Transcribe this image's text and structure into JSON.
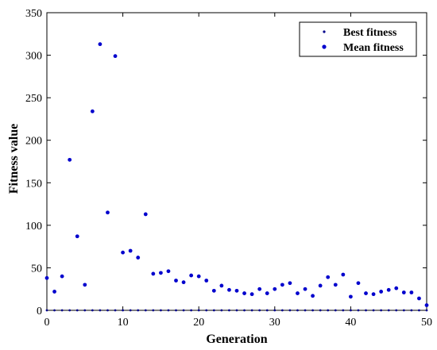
{
  "chart_data": {
    "type": "scatter",
    "xlabel": "Generation",
    "ylabel": "Fitness value",
    "xlim": [
      0,
      50
    ],
    "ylim": [
      0,
      350
    ],
    "xticks": [
      0,
      10,
      20,
      30,
      40,
      50
    ],
    "yticks": [
      0,
      50,
      100,
      150,
      200,
      250,
      300,
      350
    ],
    "xtick_labels": [
      "0",
      "10",
      "20",
      "30",
      "40",
      "50"
    ],
    "ytick_labels": [
      "0",
      "50",
      "100",
      "150",
      "200",
      "250",
      "300",
      "350"
    ],
    "grid": false,
    "legend_position": "top-right",
    "series": [
      {
        "name": "Best fitness",
        "color": "#00008B",
        "marker": "small-dot",
        "x": [
          0,
          1,
          2,
          3,
          4,
          5,
          6,
          7,
          8,
          9,
          10,
          11,
          12,
          13,
          14,
          15,
          16,
          17,
          18,
          19,
          20,
          21,
          22,
          23,
          24,
          25,
          26,
          27,
          28,
          29,
          30,
          31,
          32,
          33,
          34,
          35,
          36,
          37,
          38,
          39,
          40,
          41,
          42,
          43,
          44,
          45,
          46,
          47,
          48,
          49,
          50
        ],
        "y": [
          0,
          0,
          0,
          0,
          0,
          0,
          0,
          0,
          0,
          0,
          0,
          0,
          0,
          0,
          0,
          0,
          0,
          0,
          0,
          0,
          0,
          0,
          0,
          0,
          0,
          0,
          0,
          0,
          0,
          0,
          0,
          0,
          0,
          0,
          0,
          0,
          0,
          0,
          0,
          0,
          0,
          0,
          0,
          0,
          0,
          0,
          0,
          0,
          0,
          0,
          0
        ]
      },
      {
        "name": "Mean fitness",
        "color": "#0000CD",
        "marker": "dot",
        "x": [
          0,
          1,
          2,
          3,
          4,
          5,
          6,
          7,
          8,
          9,
          10,
          11,
          12,
          13,
          14,
          15,
          16,
          17,
          18,
          19,
          20,
          21,
          22,
          23,
          24,
          25,
          26,
          27,
          28,
          29,
          30,
          31,
          32,
          33,
          34,
          35,
          36,
          37,
          38,
          39,
          40,
          41,
          42,
          43,
          44,
          45,
          46,
          47,
          48,
          49,
          50
        ],
        "y": [
          38,
          22,
          40,
          177,
          87,
          30,
          234,
          313,
          115,
          299,
          68,
          70,
          62,
          113,
          43,
          44,
          46,
          35,
          33,
          41,
          40,
          35,
          23,
          29,
          24,
          23,
          20,
          19,
          25,
          20,
          25,
          30,
          32,
          20,
          25,
          17,
          29,
          39,
          30,
          42,
          16,
          32,
          20,
          19,
          22,
          24,
          26,
          21,
          21,
          14,
          6
        ]
      }
    ]
  }
}
